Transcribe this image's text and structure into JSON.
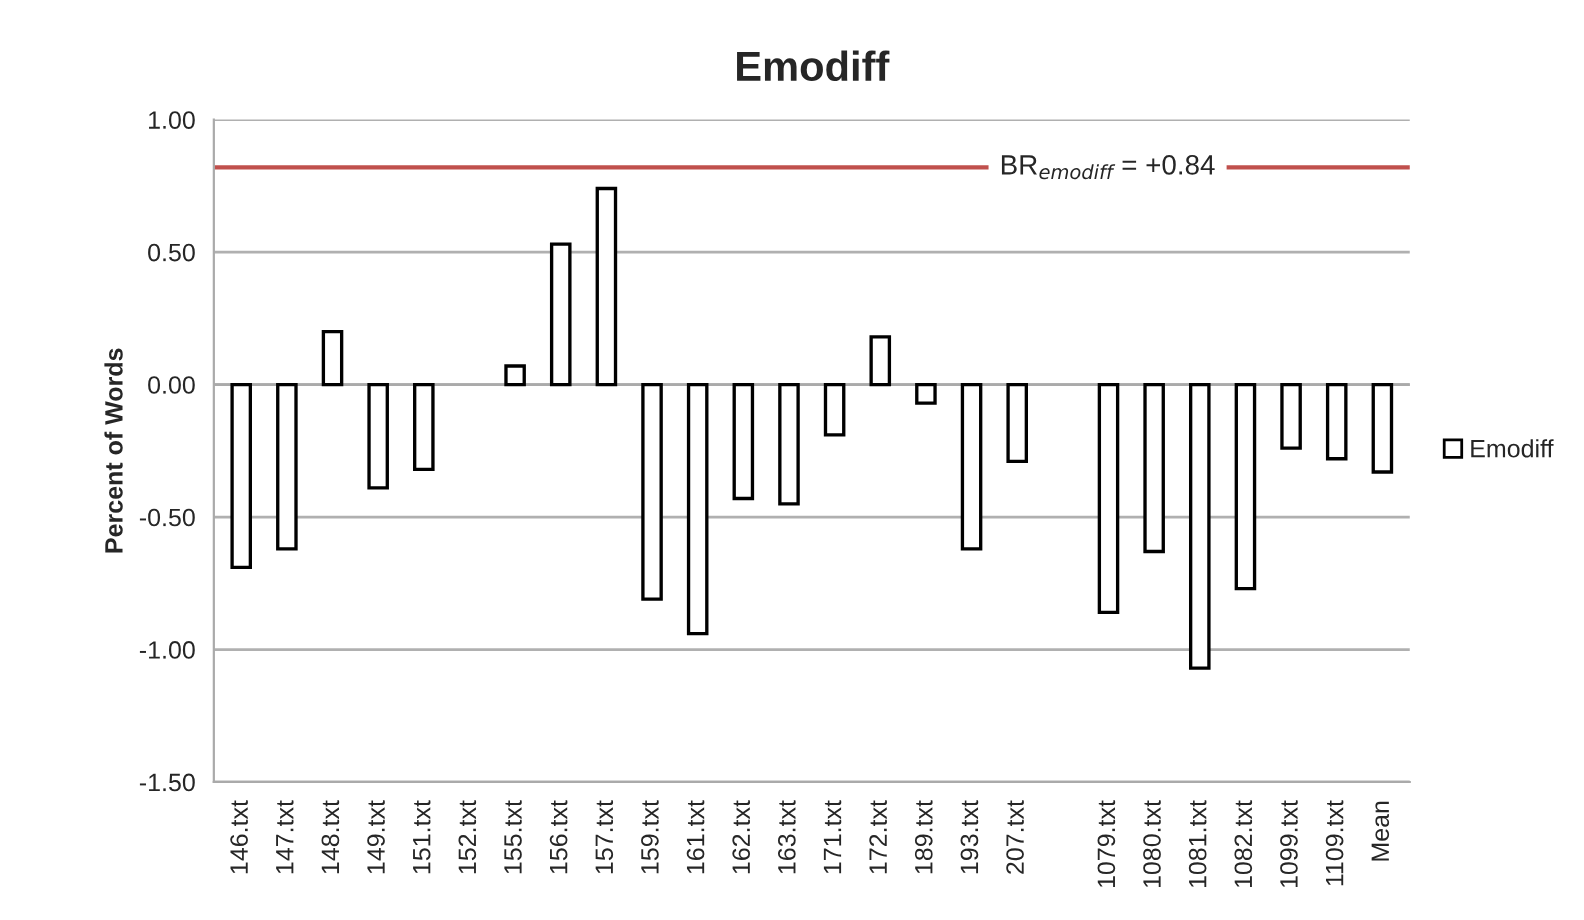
{
  "chart_data": {
    "type": "bar",
    "title": "Emodiff",
    "ylabel": "Percent of Words",
    "categories": [
      "146.txt",
      "147.txt",
      "148.txt",
      "149.txt",
      "151.txt",
      "152.txt",
      "155.txt",
      "156.txt",
      "157.txt",
      "159.txt",
      "161.txt",
      "162.txt",
      "163.txt",
      "171.txt",
      "172.txt",
      "189.txt",
      "193.txt",
      "207.txt",
      null,
      "1079.txt",
      "1080.txt",
      "1081.txt",
      "1082.txt",
      "1099.txt",
      "1109.txt",
      "Mean"
    ],
    "series": [
      {
        "name": "Emodiff",
        "color": "#ffffff",
        "values": [
          -0.69,
          -0.62,
          0.2,
          -0.39,
          -0.32,
          0,
          0.07,
          0.53,
          0.74,
          -0.81,
          -0.94,
          -0.43,
          -0.45,
          -0.19,
          0.18,
          -0.07,
          -0.62,
          -0.29,
          null,
          -0.86,
          -0.63,
          -1.07,
          -0.77,
          -0.24,
          -0.28,
          -0.33
        ]
      }
    ],
    "ylim": [
      -1.5,
      1.0
    ],
    "yticks": [
      {
        "value": -1.5,
        "label": "-1.50"
      },
      {
        "value": -1.0,
        "label": "-1.00"
      },
      {
        "value": -0.5,
        "label": "-0.50"
      },
      {
        "value": 0,
        "label": "0.00"
      },
      {
        "value": 0.5,
        "label": "0.50"
      },
      {
        "value": 1.0,
        "label": "1.00"
      }
    ],
    "ref_lines": [
      {
        "axis": "y",
        "value": 0.82,
        "label": "BR$_{emodiff}$ = +0.84",
        "color": "#c0504d"
      }
    ],
    "grid": "y",
    "legend": "right"
  }
}
